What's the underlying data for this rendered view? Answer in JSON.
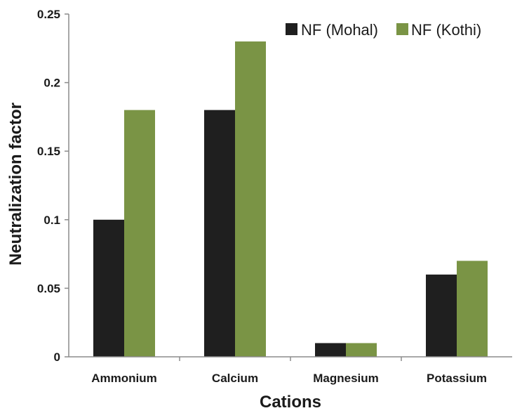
{
  "chart_data": {
    "type": "bar",
    "title": "",
    "xlabel": "Cations",
    "ylabel": "Neutralization factor",
    "categories": [
      "Ammonium",
      "Calcium",
      "Magnesium",
      "Potassium"
    ],
    "series": [
      {
        "name": "NF (Mohal)",
        "values": [
          0.1,
          0.18,
          0.01,
          0.06
        ],
        "color": "#1f1f1f"
      },
      {
        "name": "NF (Kothi)",
        "values": [
          0.18,
          0.23,
          0.01,
          0.07
        ],
        "color": "#7a9445"
      }
    ],
    "ylim": [
      0,
      0.25
    ],
    "yticks": [
      "0",
      "0.05",
      "0.1",
      "0.15",
      "0.2",
      "0.25"
    ],
    "grid": false,
    "legend_position": "top-right"
  }
}
